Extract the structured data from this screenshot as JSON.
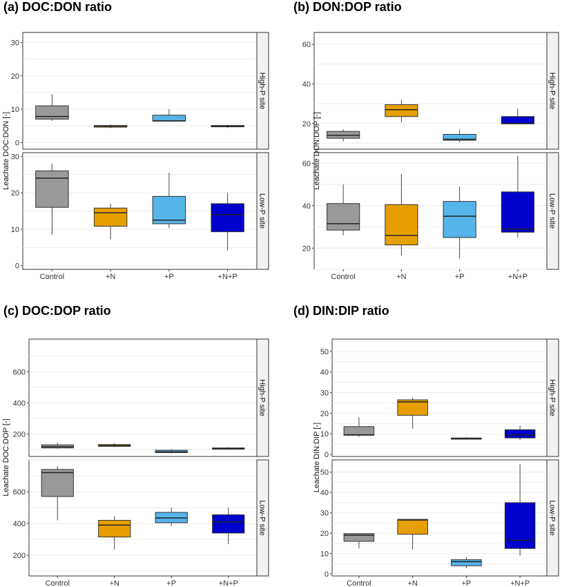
{
  "colors": {
    "Control": "#999999",
    "+N": "#E69F00",
    "+P": "#56B4E9",
    "+N+P": "#0000CD",
    "panel_bg": "#ffffff",
    "grid": "#ebebeb",
    "strip_bg": "#f2f2f2"
  },
  "chart_data": [
    {
      "type": "box",
      "title": "(a) DOC:DON ratio",
      "ylabel": "Leachate DOC:DON [-]",
      "categories": [
        "Control",
        "+N",
        "+P",
        "+N+P"
      ],
      "facets": [
        {
          "label": "High-P site",
          "ylim": [
            -2,
            33
          ],
          "yticks": [
            0,
            10,
            20,
            30
          ],
          "boxes": [
            {
              "category": "Control",
              "min": 6.5,
              "q1": 7.0,
              "median": 7.8,
              "q3": 11.0,
              "max": 14.5
            },
            {
              "category": "+N",
              "min": 4.3,
              "q1": 4.6,
              "median": 4.9,
              "q3": 5.1,
              "max": 5.4
            },
            {
              "category": "+P",
              "min": 6.2,
              "q1": 6.4,
              "median": 6.5,
              "q3": 8.2,
              "max": 10.0
            },
            {
              "category": "+N+P",
              "min": 4.4,
              "q1": 4.7,
              "median": 4.9,
              "q3": 5.1,
              "max": 5.3
            }
          ]
        },
        {
          "label": "Low-P site",
          "ylim": [
            -1,
            31
          ],
          "yticks": [
            0,
            10,
            20,
            30
          ],
          "boxes": [
            {
              "category": "Control",
              "min": 8.5,
              "q1": 16.0,
              "median": 24.0,
              "q3": 26.0,
              "max": 28.0
            },
            {
              "category": "+N",
              "min": 7.2,
              "q1": 10.8,
              "median": 14.5,
              "q3": 15.8,
              "max": 17.0
            },
            {
              "category": "+P",
              "min": 10.3,
              "q1": 11.5,
              "median": 12.5,
              "q3": 19.0,
              "max": 25.5
            },
            {
              "category": "+N+P",
              "min": 4.2,
              "q1": 9.3,
              "median": 14.0,
              "q3": 17.0,
              "max": 20.0
            }
          ]
        }
      ]
    },
    {
      "type": "box",
      "title": "(b) DON:DOP ratio",
      "ylabel": "Leachate DON:DOP [-]",
      "categories": [
        "Control",
        "+N",
        "+P",
        "+N+P"
      ],
      "facets": [
        {
          "label": "High-P site",
          "ylim": [
            7,
            66
          ],
          "yticks": [
            20,
            40,
            60
          ],
          "boxes": [
            {
              "category": "Control",
              "min": 11.0,
              "q1": 12.5,
              "median": 14.0,
              "q3": 16.0,
              "max": 17.0
            },
            {
              "category": "+N",
              "min": 20.5,
              "q1": 23.5,
              "median": 27.0,
              "q3": 29.5,
              "max": 32.0
            },
            {
              "category": "+P",
              "min": 10.5,
              "q1": 11.5,
              "median": 12.0,
              "q3": 14.5,
              "max": 17.0
            },
            {
              "category": "+N+P",
              "min": 19.5,
              "q1": 19.8,
              "median": 20.0,
              "q3": 23.5,
              "max": 27.5
            }
          ]
        },
        {
          "label": "Low-P site",
          "ylim": [
            10,
            65
          ],
          "yticks": [
            20,
            40,
            60
          ],
          "boxes": [
            {
              "category": "Control",
              "min": 26.0,
              "q1": 28.5,
              "median": 31.5,
              "q3": 41.0,
              "max": 50.0
            },
            {
              "category": "+N",
              "min": 16.5,
              "q1": 21.5,
              "median": 26.0,
              "q3": 40.5,
              "max": 55.0
            },
            {
              "category": "+P",
              "min": 15.0,
              "q1": 25.0,
              "median": 35.0,
              "q3": 42.0,
              "max": 49.0
            },
            {
              "category": "+N+P",
              "min": 25.0,
              "q1": 27.5,
              "median": 29.0,
              "q3": 46.5,
              "max": 63.5
            }
          ]
        }
      ]
    },
    {
      "type": "box",
      "title": "(c) DOC:DOP ratio",
      "ylabel": "Leachate DOC:DOP [-]",
      "categories": [
        "Control",
        "+N",
        "+P",
        "+N+P"
      ],
      "facets": [
        {
          "label": "High-P site",
          "ylim": [
            55,
            810
          ],
          "yticks": [
            200,
            400,
            600
          ],
          "boxes": [
            {
              "category": "Control",
              "min": 105,
              "q1": 110,
              "median": 118,
              "q3": 130,
              "max": 145
            },
            {
              "category": "+N",
              "min": 115,
              "q1": 120,
              "median": 125,
              "q3": 132,
              "max": 140
            },
            {
              "category": "+P",
              "min": 75,
              "q1": 80,
              "median": 85,
              "q3": 95,
              "max": 102
            },
            {
              "category": "+N+P",
              "min": 100,
              "q1": 102,
              "median": 105,
              "q3": 110,
              "max": 115
            }
          ]
        },
        {
          "label": "Low-P site",
          "ylim": [
            70,
            800
          ],
          "yticks": [
            200,
            400,
            600
          ],
          "boxes": [
            {
              "category": "Control",
              "min": 420,
              "q1": 570,
              "median": 720,
              "q3": 740,
              "max": 760
            },
            {
              "category": "+N",
              "min": 235,
              "q1": 315,
              "median": 390,
              "q3": 420,
              "max": 445
            },
            {
              "category": "+P",
              "min": 385,
              "q1": 405,
              "median": 435,
              "q3": 470,
              "max": 500
            },
            {
              "category": "+N+P",
              "min": 270,
              "q1": 340,
              "median": 410,
              "q3": 455,
              "max": 500
            }
          ]
        }
      ]
    },
    {
      "type": "box",
      "title": "(d) DIN:DIP ratio",
      "ylabel": "Leachate DIN:DIP [-]",
      "categories": [
        "Control",
        "+N",
        "+P",
        "+N+P"
      ],
      "facets": [
        {
          "label": "High-P site",
          "ylim": [
            -1,
            56
          ],
          "yticks": [
            0,
            10,
            20,
            30,
            40,
            50
          ],
          "boxes": [
            {
              "category": "Control",
              "min": 8.5,
              "q1": 9.3,
              "median": 9.5,
              "q3": 13.5,
              "max": 18.0
            },
            {
              "category": "+N",
              "min": 12.5,
              "q1": 19.0,
              "median": 25.5,
              "q3": 26.5,
              "max": 27.5
            },
            {
              "category": "+P",
              "min": 7.2,
              "q1": 7.4,
              "median": 7.6,
              "q3": 8.0,
              "max": 8.4
            },
            {
              "category": "+N+P",
              "min": 7.0,
              "q1": 8.0,
              "median": 9.5,
              "q3": 12.0,
              "max": 14.0
            }
          ]
        },
        {
          "label": "Low-P site",
          "ylim": [
            -1,
            56
          ],
          "yticks": [
            0,
            10,
            20,
            30,
            40,
            50
          ],
          "boxes": [
            {
              "category": "Control",
              "min": 12.5,
              "q1": 16.0,
              "median": 19.0,
              "q3": 19.8,
              "max": 20.0
            },
            {
              "category": "+N",
              "min": 12.0,
              "q1": 19.5,
              "median": 26.5,
              "q3": 26.8,
              "max": 27.0
            },
            {
              "category": "+P",
              "min": 2.8,
              "q1": 4.0,
              "median": 6.0,
              "q3": 7.0,
              "max": 8.2
            },
            {
              "category": "+N+P",
              "min": 9.0,
              "q1": 12.5,
              "median": 16.5,
              "q3": 35.0,
              "max": 54.0
            }
          ]
        }
      ]
    }
  ]
}
